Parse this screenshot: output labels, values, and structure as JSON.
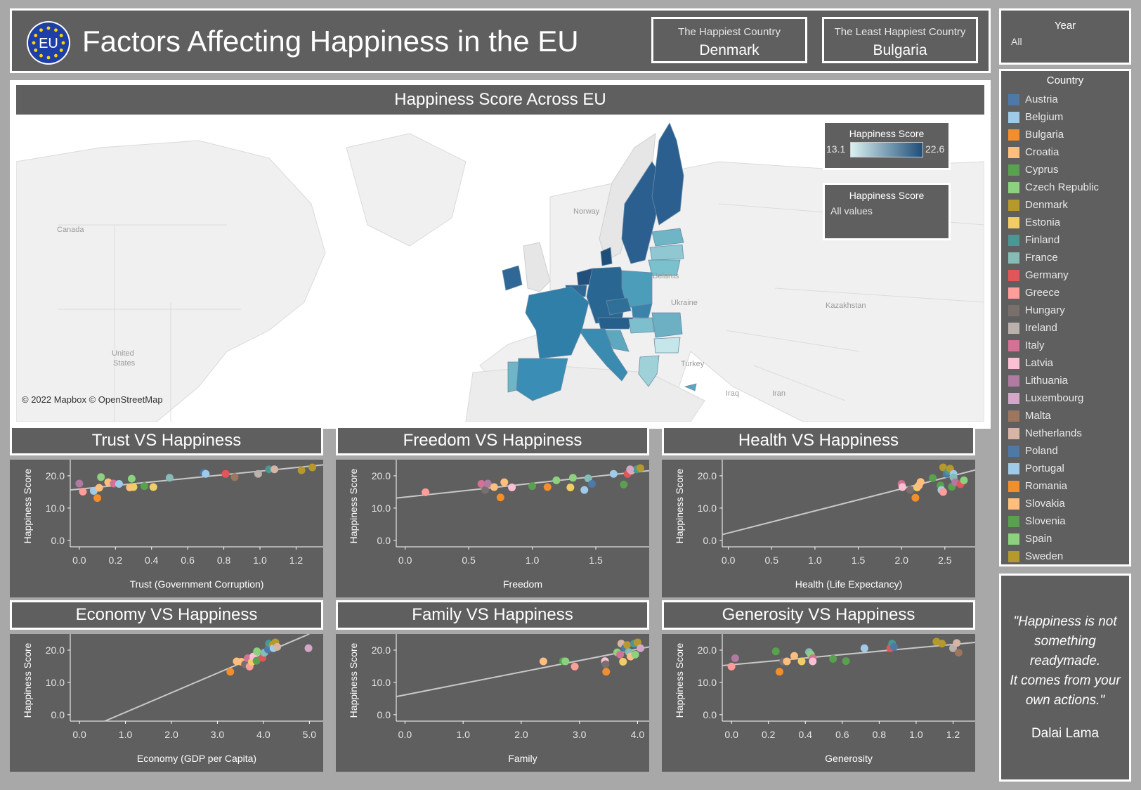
{
  "header": {
    "title": "Factors Affecting Happiness in the EU",
    "logo_text": "EU",
    "kpis": [
      {
        "label": "The Happiest Country",
        "value": "Denmark"
      },
      {
        "label": "The Least Happiest Country",
        "value": "Bulgaria"
      }
    ]
  },
  "year_filter": {
    "label": "Year",
    "value": "All"
  },
  "country_legend": {
    "title": "Country",
    "items": [
      {
        "name": "Austria",
        "color": "#4e79a7"
      },
      {
        "name": "Belgium",
        "color": "#a0cbe8"
      },
      {
        "name": "Bulgaria",
        "color": "#f28e2b"
      },
      {
        "name": "Croatia",
        "color": "#ffbe7d"
      },
      {
        "name": "Cyprus",
        "color": "#59a14f"
      },
      {
        "name": "Czech Republic",
        "color": "#8cd17d"
      },
      {
        "name": "Denmark",
        "color": "#b6992d"
      },
      {
        "name": "Estonia",
        "color": "#f1ce63"
      },
      {
        "name": "Finland",
        "color": "#499894"
      },
      {
        "name": "France",
        "color": "#86bcb6"
      },
      {
        "name": "Germany",
        "color": "#e15759"
      },
      {
        "name": "Greece",
        "color": "#ff9d9a"
      },
      {
        "name": "Hungary",
        "color": "#79706e"
      },
      {
        "name": "Ireland",
        "color": "#bab0ac"
      },
      {
        "name": "Italy",
        "color": "#d37295"
      },
      {
        "name": "Latvia",
        "color": "#fabfd2"
      },
      {
        "name": "Lithuania",
        "color": "#b07aa1"
      },
      {
        "name": "Luxembourg",
        "color": "#d4a6c8"
      },
      {
        "name": "Malta",
        "color": "#9d7660"
      },
      {
        "name": "Netherlands",
        "color": "#d7b5a6"
      },
      {
        "name": "Poland",
        "color": "#4e79a7"
      },
      {
        "name": "Portugal",
        "color": "#a0cbe8"
      },
      {
        "name": "Romania",
        "color": "#f28e2b"
      },
      {
        "name": "Slovakia",
        "color": "#ffbe7d"
      },
      {
        "name": "Slovenia",
        "color": "#59a14f"
      },
      {
        "name": "Spain",
        "color": "#8cd17d"
      },
      {
        "name": "Sweden",
        "color": "#b6992d"
      }
    ]
  },
  "quote": {
    "lines": [
      "\"Happiness is not",
      "something",
      "readymade.",
      "It comes from your",
      "own actions.\""
    ],
    "author": "Dalai Lama"
  },
  "map": {
    "title": "Happiness Score Across EU",
    "credit": "© 2022 Mapbox © OpenStreetMap",
    "labels": [
      "Canada",
      "United",
      "States",
      "Norway",
      "Belarus",
      "Ukraine",
      "Kazakhstan",
      "Turkey",
      "Iraq",
      "Iran"
    ],
    "color_legend": {
      "title": "Happiness Score",
      "min": "13.1",
      "max": "22.6",
      "color_low": "#d9f0f0",
      "color_high": "#1f4e79"
    },
    "filter_legend": {
      "title": "Happiness Score",
      "value": "All values"
    }
  },
  "chart_data": [
    {
      "id": "trust",
      "type": "scatter",
      "title": "Trust VS Happiness",
      "xlabel": "Trust (Government Corruption)",
      "ylabel": "Happiness Score",
      "xticks": [
        "0.0",
        "0.2",
        "0.4",
        "0.6",
        "0.8",
        "1.0",
        "1.2"
      ],
      "yticks": [
        "0.0",
        "10.0",
        "20.0"
      ],
      "xlim": [
        -0.05,
        1.35
      ],
      "ylim": [
        -2,
        25
      ],
      "trend": [
        [
          -0.05,
          15.6
        ],
        [
          1.35,
          23.4
        ]
      ],
      "points": [
        {
          "x": 0.0,
          "y": 17.6,
          "c": "#b07aa1"
        },
        {
          "x": 0.02,
          "y": 15.1,
          "c": "#ff9d9a"
        },
        {
          "x": 0.08,
          "y": 15.3,
          "c": "#a0cbe8"
        },
        {
          "x": 0.1,
          "y": 13.1,
          "c": "#f28e2b"
        },
        {
          "x": 0.11,
          "y": 16.3,
          "c": "#ffbe7d"
        },
        {
          "x": 0.12,
          "y": 19.6,
          "c": "#8cd17d"
        },
        {
          "x": 0.16,
          "y": 18.0,
          "c": "#ffbe7d"
        },
        {
          "x": 0.19,
          "y": 17.6,
          "c": "#d37295"
        },
        {
          "x": 0.22,
          "y": 17.5,
          "c": "#a0cbe8"
        },
        {
          "x": 0.28,
          "y": 16.4,
          "c": "#ffbe7d"
        },
        {
          "x": 0.29,
          "y": 19.1,
          "c": "#8cd17d"
        },
        {
          "x": 0.3,
          "y": 16.5,
          "c": "#f1ce63"
        },
        {
          "x": 0.36,
          "y": 16.8,
          "c": "#59a14f"
        },
        {
          "x": 0.41,
          "y": 16.5,
          "c": "#f1ce63"
        },
        {
          "x": 0.5,
          "y": 19.4,
          "c": "#86bcb6"
        },
        {
          "x": 0.69,
          "y": 21.0,
          "c": "#4e79a7"
        },
        {
          "x": 0.7,
          "y": 20.6,
          "c": "#a0cbe8"
        },
        {
          "x": 0.81,
          "y": 20.6,
          "c": "#e15759"
        },
        {
          "x": 0.86,
          "y": 19.6,
          "c": "#9d7660"
        },
        {
          "x": 0.99,
          "y": 20.6,
          "c": "#bab0ac"
        },
        {
          "x": 1.05,
          "y": 22.0,
          "c": "#499894"
        },
        {
          "x": 1.08,
          "y": 22.0,
          "c": "#d7b5a6"
        },
        {
          "x": 1.23,
          "y": 21.7,
          "c": "#b6992d"
        },
        {
          "x": 1.29,
          "y": 22.6,
          "c": "#b6992d"
        }
      ]
    },
    {
      "id": "freedom",
      "type": "scatter",
      "title": "Freedom VS Happiness",
      "xlabel": "Freedom",
      "ylabel": "Happiness Score",
      "xticks": [
        "0.0",
        "0.5",
        "1.0",
        "1.5"
      ],
      "yticks": [
        "0.0",
        "10.0",
        "20.0"
      ],
      "xlim": [
        -0.07,
        1.92
      ],
      "ylim": [
        -2,
        25
      ],
      "trend": [
        [
          -0.07,
          13.1
        ],
        [
          1.92,
          21.6
        ]
      ],
      "points": [
        {
          "x": 0.16,
          "y": 14.9,
          "c": "#ff9d9a"
        },
        {
          "x": 0.6,
          "y": 17.5,
          "c": "#d37295"
        },
        {
          "x": 0.63,
          "y": 15.6,
          "c": "#79706e"
        },
        {
          "x": 0.65,
          "y": 17.6,
          "c": "#b07aa1"
        },
        {
          "x": 0.7,
          "y": 16.5,
          "c": "#ffbe7d"
        },
        {
          "x": 0.75,
          "y": 13.3,
          "c": "#f28e2b"
        },
        {
          "x": 0.78,
          "y": 18.0,
          "c": "#ffbe7d"
        },
        {
          "x": 0.84,
          "y": 16.4,
          "c": "#fabfd2"
        },
        {
          "x": 1.0,
          "y": 16.8,
          "c": "#59a14f"
        },
        {
          "x": 1.12,
          "y": 16.5,
          "c": "#f28e2b"
        },
        {
          "x": 1.19,
          "y": 18.6,
          "c": "#8cd17d"
        },
        {
          "x": 1.3,
          "y": 16.4,
          "c": "#f1ce63"
        },
        {
          "x": 1.32,
          "y": 19.4,
          "c": "#8cd17d"
        },
        {
          "x": 1.41,
          "y": 15.6,
          "c": "#a0cbe8"
        },
        {
          "x": 1.44,
          "y": 19.2,
          "c": "#86bcb6"
        },
        {
          "x": 1.47,
          "y": 17.5,
          "c": "#4e79a7"
        },
        {
          "x": 1.64,
          "y": 20.6,
          "c": "#a0cbe8"
        },
        {
          "x": 1.72,
          "y": 17.3,
          "c": "#59a14f"
        },
        {
          "x": 1.75,
          "y": 20.6,
          "c": "#e15759"
        },
        {
          "x": 1.78,
          "y": 21.6,
          "c": "#d7b5a6"
        },
        {
          "x": 1.82,
          "y": 22.0,
          "c": "#499894"
        },
        {
          "x": 1.85,
          "y": 22.4,
          "c": "#b6992d"
        },
        {
          "x": 1.77,
          "y": 22.0,
          "c": "#d4a6c8"
        }
      ]
    },
    {
      "id": "health",
      "type": "scatter",
      "title": "Health VS Happiness",
      "xlabel": "Health (Life Expectancy)",
      "ylabel": "Happiness Score",
      "xticks": [
        "0.0",
        "0.5",
        "1.0",
        "1.5",
        "2.0",
        "2.5"
      ],
      "yticks": [
        "0.0",
        "10.0",
        "20.0"
      ],
      "xlim": [
        -0.07,
        2.85
      ],
      "ylim": [
        -2,
        25
      ],
      "trend": [
        [
          -0.07,
          1.8
        ],
        [
          2.85,
          21.8
        ]
      ],
      "points": [
        {
          "x": 2.0,
          "y": 17.5,
          "c": "#d37295"
        },
        {
          "x": 2.01,
          "y": 16.5,
          "c": "#fabfd2"
        },
        {
          "x": 2.1,
          "y": 15.6,
          "c": "#79706e"
        },
        {
          "x": 2.16,
          "y": 13.2,
          "c": "#f28e2b"
        },
        {
          "x": 2.18,
          "y": 16.4,
          "c": "#f1ce63"
        },
        {
          "x": 2.2,
          "y": 17.0,
          "c": "#ffbe7d"
        },
        {
          "x": 2.22,
          "y": 18.1,
          "c": "#ffbe7d"
        },
        {
          "x": 2.36,
          "y": 19.3,
          "c": "#59a14f"
        },
        {
          "x": 2.45,
          "y": 17.0,
          "c": "#59a14f"
        },
        {
          "x": 2.46,
          "y": 15.6,
          "c": "#a0cbe8"
        },
        {
          "x": 2.48,
          "y": 15.0,
          "c": "#ff9d9a"
        },
        {
          "x": 2.48,
          "y": 22.6,
          "c": "#b6992d"
        },
        {
          "x": 2.52,
          "y": 20.6,
          "c": "#4e79a7"
        },
        {
          "x": 2.54,
          "y": 21.4,
          "c": "#499894"
        },
        {
          "x": 2.56,
          "y": 22.2,
          "c": "#b6992d"
        },
        {
          "x": 2.58,
          "y": 16.6,
          "c": "#59a14f"
        },
        {
          "x": 2.6,
          "y": 20.6,
          "c": "#a0cbe8"
        },
        {
          "x": 2.6,
          "y": 19.5,
          "c": "#86bcb6"
        },
        {
          "x": 2.62,
          "y": 18.0,
          "c": "#b07aa1"
        },
        {
          "x": 2.68,
          "y": 17.4,
          "c": "#e15759"
        },
        {
          "x": 2.72,
          "y": 18.6,
          "c": "#8cd17d"
        }
      ]
    },
    {
      "id": "economy",
      "type": "scatter",
      "title": "Economy VS Happiness",
      "xlabel": "Economy (GDP per Capita)",
      "ylabel": "Happiness Score",
      "xticks": [
        "0.0",
        "1.0",
        "2.0",
        "3.0",
        "4.0",
        "5.0"
      ],
      "yticks": [
        "0.0",
        "10.0",
        "20.0"
      ],
      "xlim": [
        -0.2,
        5.3
      ],
      "ylim": [
        -2,
        25
      ],
      "trend": [
        [
          0.55,
          -2
        ],
        [
          5.0,
          25
        ]
      ],
      "points": [
        {
          "x": 3.28,
          "y": 13.3,
          "c": "#f28e2b"
        },
        {
          "x": 3.42,
          "y": 16.5,
          "c": "#ffbe7d"
        },
        {
          "x": 3.52,
          "y": 16.4,
          "c": "#ffbe7d"
        },
        {
          "x": 3.6,
          "y": 15.6,
          "c": "#79706e"
        },
        {
          "x": 3.66,
          "y": 17.5,
          "c": "#d37295"
        },
        {
          "x": 3.7,
          "y": 14.9,
          "c": "#ff9d9a"
        },
        {
          "x": 3.75,
          "y": 16.4,
          "c": "#f1ce63"
        },
        {
          "x": 3.78,
          "y": 18.0,
          "c": "#fabfd2"
        },
        {
          "x": 3.85,
          "y": 16.7,
          "c": "#59a14f"
        },
        {
          "x": 3.86,
          "y": 19.6,
          "c": "#8cd17d"
        },
        {
          "x": 3.98,
          "y": 17.6,
          "c": "#e15759"
        },
        {
          "x": 4.02,
          "y": 19.2,
          "c": "#86bcb6"
        },
        {
          "x": 4.1,
          "y": 20.2,
          "c": "#4e79a7"
        },
        {
          "x": 4.12,
          "y": 22.0,
          "c": "#499894"
        },
        {
          "x": 4.2,
          "y": 21.6,
          "c": "#b6992d"
        },
        {
          "x": 4.22,
          "y": 20.6,
          "c": "#a0cbe8"
        },
        {
          "x": 4.26,
          "y": 22.4,
          "c": "#b6992d"
        },
        {
          "x": 4.3,
          "y": 21.0,
          "c": "#d7b5a6"
        },
        {
          "x": 4.98,
          "y": 20.6,
          "c": "#d4a6c8"
        }
      ]
    },
    {
      "id": "family",
      "type": "scatter",
      "title": "Family VS Happiness",
      "xlabel": "Family",
      "ylabel": "Happiness Score",
      "xticks": [
        "0.0",
        "1.0",
        "2.0",
        "3.0",
        "4.0"
      ],
      "yticks": [
        "0.0",
        "10.0",
        "20.0"
      ],
      "xlim": [
        -0.15,
        4.2
      ],
      "ylim": [
        -2,
        25
      ],
      "trend": [
        [
          -0.15,
          5.6
        ],
        [
          4.2,
          21.0
        ]
      ],
      "points": [
        {
          "x": 2.38,
          "y": 16.5,
          "c": "#ffbe7d"
        },
        {
          "x": 2.72,
          "y": 16.6,
          "c": "#59a14f"
        },
        {
          "x": 2.76,
          "y": 16.5,
          "c": "#8cd17d"
        },
        {
          "x": 2.92,
          "y": 14.9,
          "c": "#ff9d9a"
        },
        {
          "x": 3.44,
          "y": 16.6,
          "c": "#fabfd2"
        },
        {
          "x": 3.45,
          "y": 15.6,
          "c": "#79706e"
        },
        {
          "x": 3.46,
          "y": 13.3,
          "c": "#f28e2b"
        },
        {
          "x": 3.65,
          "y": 19.3,
          "c": "#8cd17d"
        },
        {
          "x": 3.7,
          "y": 18.6,
          "c": "#d37295"
        },
        {
          "x": 3.72,
          "y": 22.0,
          "c": "#d7b5a6"
        },
        {
          "x": 3.75,
          "y": 16.4,
          "c": "#f1ce63"
        },
        {
          "x": 3.78,
          "y": 20.6,
          "c": "#4e79a7"
        },
        {
          "x": 3.82,
          "y": 21.6,
          "c": "#b6992d"
        },
        {
          "x": 3.85,
          "y": 19.4,
          "c": "#86bcb6"
        },
        {
          "x": 3.88,
          "y": 18.0,
          "c": "#ffbe7d"
        },
        {
          "x": 3.94,
          "y": 22.0,
          "c": "#499894"
        },
        {
          "x": 3.96,
          "y": 18.6,
          "c": "#8cd17d"
        },
        {
          "x": 4.0,
          "y": 22.4,
          "c": "#b6992d"
        },
        {
          "x": 4.05,
          "y": 20.6,
          "c": "#d4a6c8"
        }
      ]
    },
    {
      "id": "generosity",
      "type": "scatter",
      "title": "Generosity VS Happiness",
      "xlabel": "Generosity",
      "ylabel": "Happiness Score",
      "xticks": [
        "0.0",
        "0.2",
        "0.4",
        "0.6",
        "0.8",
        "1.0",
        "1.2"
      ],
      "yticks": [
        "0.0",
        "10.0",
        "20.0"
      ],
      "xlim": [
        -0.05,
        1.32
      ],
      "ylim": [
        -2,
        25
      ],
      "trend": [
        [
          -0.05,
          15.2
        ],
        [
          1.32,
          22.4
        ]
      ],
      "points": [
        {
          "x": 0.0,
          "y": 14.9,
          "c": "#ff9d9a"
        },
        {
          "x": 0.02,
          "y": 17.5,
          "c": "#b07aa1"
        },
        {
          "x": 0.24,
          "y": 19.6,
          "c": "#59a14f"
        },
        {
          "x": 0.26,
          "y": 13.3,
          "c": "#f28e2b"
        },
        {
          "x": 0.28,
          "y": 16.4,
          "c": "#79706e"
        },
        {
          "x": 0.3,
          "y": 16.5,
          "c": "#ffbe7d"
        },
        {
          "x": 0.34,
          "y": 18.2,
          "c": "#ffbe7d"
        },
        {
          "x": 0.38,
          "y": 16.5,
          "c": "#f1ce63"
        },
        {
          "x": 0.42,
          "y": 19.4,
          "c": "#86bcb6"
        },
        {
          "x": 0.43,
          "y": 18.6,
          "c": "#8cd17d"
        },
        {
          "x": 0.44,
          "y": 17.5,
          "c": "#d37295"
        },
        {
          "x": 0.44,
          "y": 16.5,
          "c": "#fabfd2"
        },
        {
          "x": 0.55,
          "y": 17.3,
          "c": "#59a14f"
        },
        {
          "x": 0.62,
          "y": 16.6,
          "c": "#59a14f"
        },
        {
          "x": 0.72,
          "y": 20.6,
          "c": "#a0cbe8"
        },
        {
          "x": 0.86,
          "y": 20.6,
          "c": "#e15759"
        },
        {
          "x": 0.87,
          "y": 22.0,
          "c": "#499894"
        },
        {
          "x": 0.88,
          "y": 21.0,
          "c": "#4e79a7"
        },
        {
          "x": 1.11,
          "y": 22.6,
          "c": "#b6992d"
        },
        {
          "x": 1.14,
          "y": 22.0,
          "c": "#b6992d"
        },
        {
          "x": 1.2,
          "y": 20.6,
          "c": "#bab0ac"
        },
        {
          "x": 1.22,
          "y": 22.2,
          "c": "#d7b5a6"
        },
        {
          "x": 1.23,
          "y": 19.2,
          "c": "#9d7660"
        }
      ]
    }
  ]
}
